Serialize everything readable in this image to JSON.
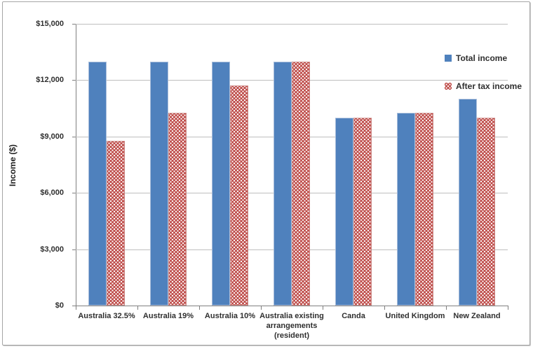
{
  "chart_data": {
    "type": "bar",
    "title": "",
    "xlabel": "",
    "ylabel": "Income ($)",
    "ylim": [
      0,
      15000
    ],
    "ytick_step": 3000,
    "yticks": [
      0,
      3000,
      6000,
      9000,
      12000,
      15000
    ],
    "ytick_labels": [
      "$0",
      "$3,000",
      "$6,000",
      "$9,000",
      "$12,000",
      "$15,000"
    ],
    "grid": true,
    "legend_position": "inside-top-right",
    "categories": [
      "Australia 32.5%",
      "Australia 19%",
      "Australia 10%",
      "Australia existing arrangements (resident)",
      "Canda",
      "United Kingdom",
      "New Zealand"
    ],
    "category_display_lines": [
      [
        "Australia 32.5%"
      ],
      [
        "Australia 19%"
      ],
      [
        "Australia 10%"
      ],
      [
        "Australia existing",
        "arrangements",
        "(resident)"
      ],
      [
        "Canda"
      ],
      [
        "United Kingdom"
      ],
      [
        "New Zealand"
      ]
    ],
    "series": [
      {
        "name": "Total income",
        "color": "#4F81BD",
        "pattern": "solid",
        "values": [
          13000,
          13000,
          13000,
          13000,
          10000,
          10250,
          11000
        ]
      },
      {
        "name": "After tax income",
        "color": "#C0504D",
        "pattern": "dotted",
        "values": [
          8775,
          10250,
          11700,
          13000,
          10000,
          10250,
          10000
        ]
      }
    ],
    "colors": {
      "gridline": "#BFBFBF",
      "axis": "#808080",
      "text": "#2F2F2F",
      "background": "#FFFFFF"
    }
  }
}
